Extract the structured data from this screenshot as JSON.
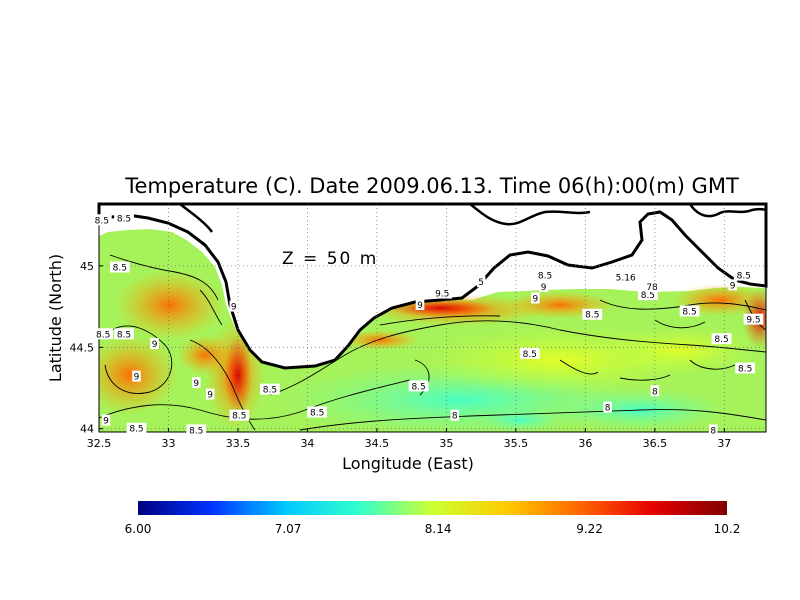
{
  "chart_data": {
    "type": "heatmap",
    "title": "Temperature (C). Date 2009.06.13. Time 06(h):00(m) GMT",
    "xlabel": "Longitude (East)",
    "ylabel": "Latitude (North)",
    "annotation": "Z = 50 m",
    "xlim": [
      32.5,
      37.3
    ],
    "ylim": [
      43.98,
      45.38
    ],
    "x_ticks": [
      32.5,
      33,
      33.5,
      34,
      34.5,
      35,
      35.5,
      36,
      36.5,
      37
    ],
    "x_tick_labels": [
      "32.5",
      "33",
      "33.5",
      "34",
      "34.5",
      "35",
      "35.5",
      "36",
      "36.5",
      "37"
    ],
    "y_ticks": [
      44,
      44.5,
      45
    ],
    "y_tick_labels": [
      "44",
      "44.5",
      "45"
    ],
    "grid": "dotted",
    "colorbar": {
      "min": 6.0,
      "max": 10.2,
      "tick_values": [
        6.0,
        7.07,
        8.14,
        9.22,
        10.2
      ],
      "tick_labels": [
        "6.00",
        "7.07",
        "8.14",
        "9.22",
        "10.2"
      ],
      "colors": [
        "#000080",
        "#0033ff",
        "#00c8ff",
        "#33ffcc",
        "#ccff33",
        "#ffcc00",
        "#ff6600",
        "#e60000",
        "#800000"
      ]
    },
    "contour_labels": [
      {
        "text": "8.5",
        "x": 32.52,
        "y": 45.28
      },
      {
        "text": "8.5",
        "x": 32.68,
        "y": 45.29
      },
      {
        "text": "8.5",
        "x": 32.65,
        "y": 44.99
      },
      {
        "text": "8.5",
        "x": 32.53,
        "y": 44.58
      },
      {
        "text": "8.5",
        "x": 32.68,
        "y": 44.58
      },
      {
        "text": "9",
        "x": 32.9,
        "y": 44.52
      },
      {
        "text": "9",
        "x": 32.77,
        "y": 44.32
      },
      {
        "text": "9",
        "x": 32.55,
        "y": 44.05
      },
      {
        "text": "8.5",
        "x": 32.77,
        "y": 44.0
      },
      {
        "text": "9",
        "x": 33.2,
        "y": 44.28
      },
      {
        "text": "9",
        "x": 33.3,
        "y": 44.21
      },
      {
        "text": "9",
        "x": 33.47,
        "y": 44.75
      },
      {
        "text": "8.5",
        "x": 33.2,
        "y": 43.99
      },
      {
        "text": "8.5",
        "x": 33.51,
        "y": 44.08
      },
      {
        "text": "8.5",
        "x": 33.73,
        "y": 44.24
      },
      {
        "text": "8.5",
        "x": 34.07,
        "y": 44.1
      },
      {
        "text": "9.5",
        "x": 34.97,
        "y": 44.83
      },
      {
        "text": "9",
        "x": 34.81,
        "y": 44.76
      },
      {
        "text": "5",
        "x": 35.25,
        "y": 44.9
      },
      {
        "text": "9",
        "x": 35.7,
        "y": 44.87
      },
      {
        "text": "9",
        "x": 35.64,
        "y": 44.8
      },
      {
        "text": "8.5",
        "x": 35.71,
        "y": 44.94
      },
      {
        "text": "8.5",
        "x": 35.6,
        "y": 44.46
      },
      {
        "text": "8.5",
        "x": 34.8,
        "y": 44.26
      },
      {
        "text": "8",
        "x": 35.06,
        "y": 44.08
      },
      {
        "text": "8.5",
        "x": 36.05,
        "y": 44.7
      },
      {
        "text": "8.5",
        "x": 36.45,
        "y": 44.82
      },
      {
        "text": "5.16",
        "x": 36.29,
        "y": 44.93
      },
      {
        "text": "78",
        "x": 36.48,
        "y": 44.87
      },
      {
        "text": "8.5",
        "x": 36.75,
        "y": 44.72
      },
      {
        "text": "8.5",
        "x": 36.98,
        "y": 44.55
      },
      {
        "text": "8",
        "x": 36.5,
        "y": 44.23
      },
      {
        "text": "8",
        "x": 36.16,
        "y": 44.13
      },
      {
        "text": "9",
        "x": 37.06,
        "y": 44.88
      },
      {
        "text": "8.5",
        "x": 37.14,
        "y": 44.94
      },
      {
        "text": "9.5",
        "x": 37.21,
        "y": 44.67
      },
      {
        "text": "8.5",
        "x": 37.15,
        "y": 44.37
      },
      {
        "text": "8",
        "x": 36.92,
        "y": 43.99
      }
    ]
  }
}
